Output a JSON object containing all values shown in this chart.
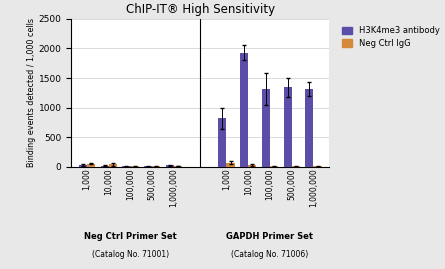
{
  "title": "ChIP-IT® High Sensitivity",
  "ylabel": "Binding events detected / 1,000 cells",
  "ylim": [
    0,
    2500
  ],
  "yticks": [
    0,
    500,
    1000,
    1500,
    2000,
    2500
  ],
  "bar_color_antibody": "#5b4ea8",
  "bar_color_neg": "#d4883a",
  "legend_labels": [
    "H3K4me3 antibody",
    "Neg Ctrl IgG"
  ],
  "group_labels": [
    "1,000",
    "10,000",
    "100,000",
    "500,000",
    "1,000,000",
    "1,000",
    "10,000",
    "100,000",
    "500,000",
    "1,000,000"
  ],
  "section_labels": [
    "Neg Ctrl Primer Set",
    "GAPDH Primer Set"
  ],
  "section_sublabels": [
    "(Catalog No. 71001)",
    "(Catalog No. 71006)"
  ],
  "antibody_values": [
    30,
    15,
    5,
    5,
    25,
    820,
    1930,
    1310,
    1340,
    1310
  ],
  "neg_values": [
    55,
    40,
    5,
    5,
    10,
    70,
    30,
    5,
    5,
    5
  ],
  "antibody_errors": [
    10,
    8,
    2,
    2,
    8,
    175,
    130,
    270,
    165,
    120
  ],
  "neg_errors": [
    15,
    20,
    2,
    2,
    5,
    30,
    10,
    2,
    2,
    2
  ],
  "background_color": "#e8e8e8",
  "plot_bg_color": "#ffffff"
}
